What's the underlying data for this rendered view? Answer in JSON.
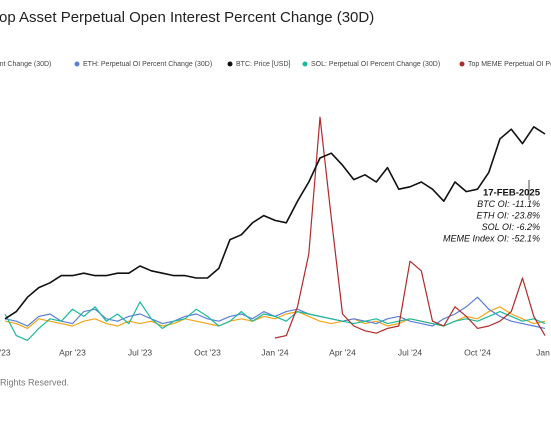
{
  "chart_data": {
    "type": "line",
    "title": "op Asset Perpetual Open Interest Percent Change (30D)",
    "footer": "Rights Reserved.",
    "categories": [
      "'23",
      null,
      null,
      null,
      null,
      null,
      "Apr '23",
      null,
      null,
      null,
      null,
      null,
      "Jul '23",
      null,
      null,
      null,
      null,
      null,
      "Oct '23",
      null,
      null,
      null,
      null,
      null,
      "Jan '24",
      null,
      null,
      null,
      null,
      null,
      "Apr '24",
      null,
      null,
      null,
      null,
      null,
      "Jul '24",
      null,
      null,
      null,
      null,
      null,
      "Oct '24",
      null,
      null,
      null,
      null,
      null,
      "Jan '"
    ],
    "ylim": [
      0,
      100
    ],
    "series": [
      {
        "name": "ercent Change (30D)",
        "color": "#f2a516",
        "values": [
          12,
          11,
          9,
          13,
          12,
          11,
          10,
          12,
          13,
          11,
          10,
          12,
          11,
          12,
          10,
          11,
          13,
          12,
          11,
          10,
          12,
          13,
          12,
          14,
          13,
          15,
          16,
          14,
          12,
          11,
          12,
          13,
          11,
          12,
          10,
          11,
          13,
          12,
          11,
          10,
          12,
          14,
          13,
          16,
          18,
          15,
          13,
          11,
          12
        ]
      },
      {
        "name": "ETH: Perpetual OI Percent Change (30D)",
        "color": "#5b7fd6",
        "values": [
          13,
          12,
          10,
          14,
          15,
          12,
          11,
          16,
          17,
          13,
          12,
          14,
          15,
          13,
          11,
          12,
          14,
          15,
          13,
          12,
          14,
          15,
          13,
          16,
          14,
          16,
          17,
          15,
          14,
          13,
          12,
          13,
          12,
          11,
          13,
          14,
          12,
          11,
          10,
          13,
          15,
          18,
          22,
          17,
          14,
          12,
          11,
          10,
          9
        ]
      },
      {
        "name": "BTC: Price [USD]",
        "color": "#111111",
        "values": [
          13,
          16,
          22,
          26,
          28,
          31,
          31,
          32,
          31,
          31,
          32,
          32,
          35,
          33,
          32,
          31,
          31,
          30,
          30,
          34,
          46,
          48,
          53,
          56,
          54,
          53,
          62,
          70,
          80,
          82,
          77,
          71,
          73,
          70,
          76,
          67,
          68,
          70,
          67,
          62,
          70,
          66,
          67,
          74,
          88,
          92,
          86,
          93,
          90
        ]
      },
      {
        "name": "SOL: Perpetual OI Percent Change (30D)",
        "color": "#1bb99a",
        "values": [
          15,
          6,
          4,
          9,
          13,
          12,
          17,
          14,
          18,
          12,
          15,
          11,
          20,
          13,
          9,
          12,
          13,
          17,
          14,
          10,
          12,
          16,
          12,
          15,
          14,
          12,
          16,
          15,
          14,
          13,
          12,
          11,
          12,
          13,
          11,
          12,
          13,
          12,
          11,
          10,
          12,
          13,
          12,
          14,
          16,
          14,
          12,
          13,
          11
        ]
      },
      {
        "name": "Top MEME Perpetual OI Pe",
        "color": "#b02a2a",
        "values": [
          null,
          null,
          null,
          null,
          null,
          null,
          null,
          null,
          null,
          null,
          null,
          null,
          null,
          null,
          null,
          null,
          null,
          null,
          null,
          null,
          null,
          null,
          null,
          null,
          5,
          6,
          18,
          40,
          97,
          55,
          15,
          10,
          8,
          7,
          9,
          10,
          37,
          33,
          12,
          10,
          18,
          14,
          9,
          10,
          12,
          16,
          30,
          14,
          6
        ]
      }
    ],
    "annotations": [
      "17-FEB-2025",
      "BTC OI: -11.1%",
      "ETH OI: -23.8%",
      "SOL OI: -6.2%",
      "MEME Index OI: -52.1%"
    ]
  }
}
